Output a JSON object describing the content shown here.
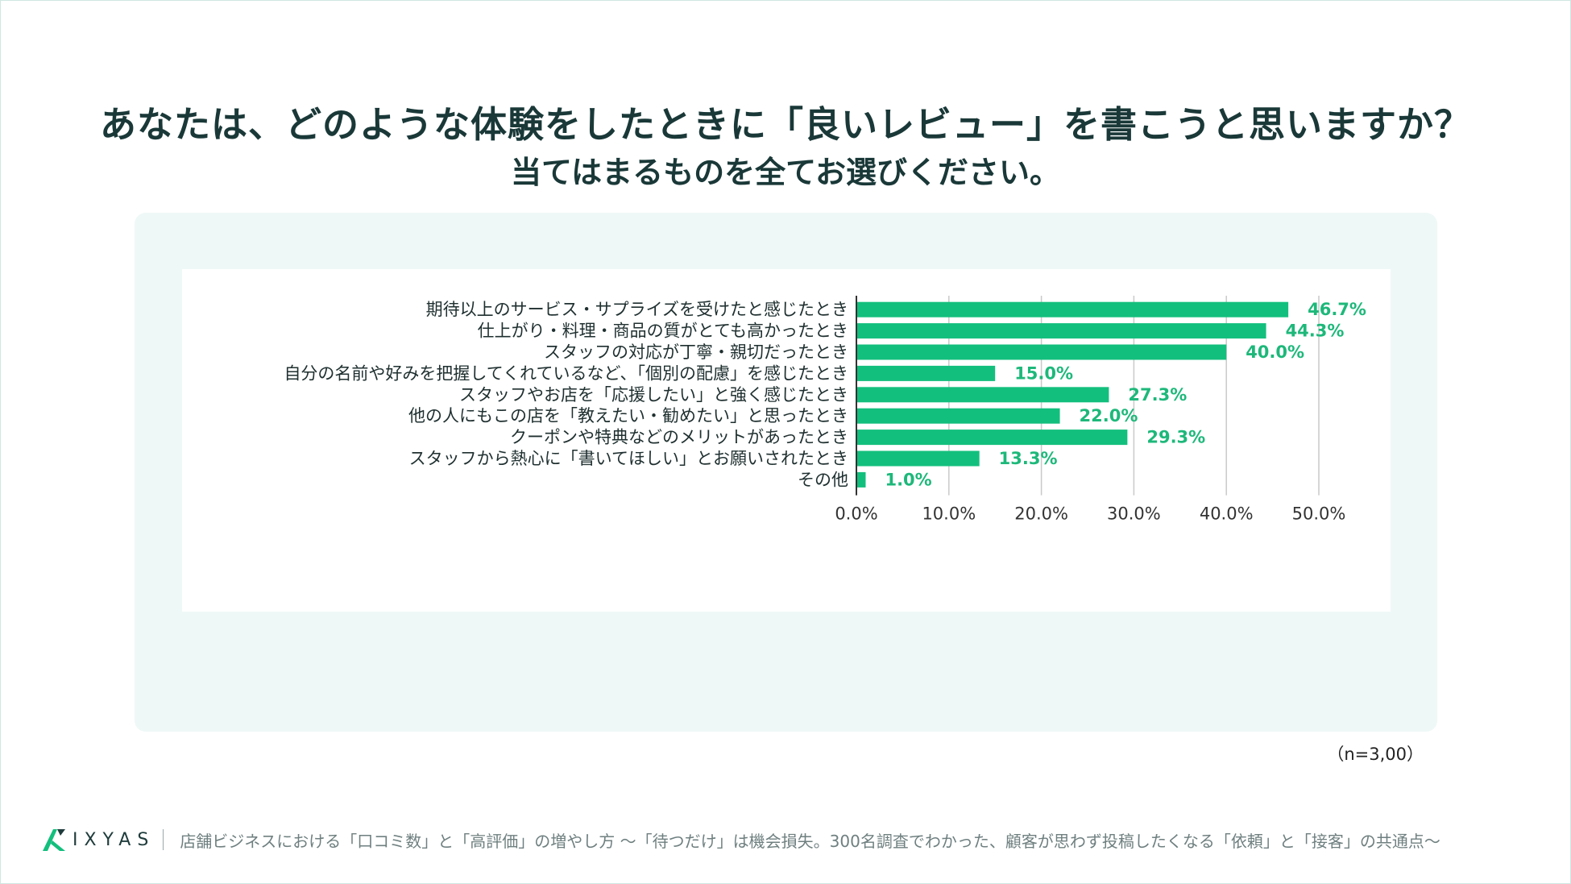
{
  "header": {
    "title": "あなたは、どのような体験をしたときに「良いレビュー」を書こうと思いますか？",
    "subtitle": "当てはまるものを全てお選びください。"
  },
  "chart_data": {
    "type": "bar",
    "orientation": "horizontal",
    "categories": [
      "期待以上のサービス・サプライズを受けたと感じたとき",
      "仕上がり・料理・商品の質がとても高かったとき",
      "スタッフの対応が丁寧・親切だったとき",
      "自分の名前や好みを把握してくれているなど、「個別の配慮」を感じたとき",
      "スタッフやお店を「応援したい」と強く感じたとき",
      "他の人にもこの店を「教えたい・勧めたい」と思ったとき",
      "クーポンや特典などのメリットがあったとき",
      "スタッフから熱心に「書いてほしい」とお願いされたとき",
      "その他"
    ],
    "values": [
      46.7,
      44.3,
      40.0,
      15.0,
      27.3,
      22.0,
      29.3,
      13.3,
      1.0
    ],
    "value_labels": [
      "46.7%",
      "44.3%",
      "40.0%",
      "15.0%",
      "27.3%",
      "22.0%",
      "29.3%",
      "13.3%",
      "1.0%"
    ],
    "xlim": [
      0,
      50
    ],
    "ticks": [
      0,
      10,
      20,
      30,
      40,
      50
    ],
    "tick_labels": [
      "0.0%",
      "10.0%",
      "20.0%",
      "30.0%",
      "40.0%",
      "50.0%"
    ],
    "grid": true,
    "bar_color": "#13bf7d",
    "label_color": "#1db87a"
  },
  "note": "（n=3,00）",
  "footer": {
    "brand": "IXYAS",
    "text": "店舗ビジネスにおける「口コミ数」と「高評価」の増やし方 〜「待つだけ」は機会損失。300名調査でわかった、顧客が思わず投稿したくなる「依頼」と「接客」の共通点〜"
  }
}
